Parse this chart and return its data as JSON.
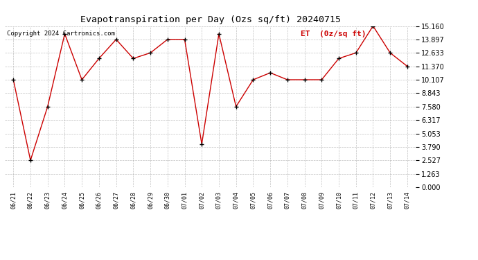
{
  "title": "Evapotranspiration per Day (Ozs sq/ft) 20240715",
  "copyright": "Copyright 2024 Cartronics.com",
  "legend_label": "ET  (0z/sq ft)",
  "x_labels": [
    "06/21",
    "06/22",
    "06/23",
    "06/24",
    "06/25",
    "06/26",
    "06/27",
    "06/28",
    "06/29",
    "06/30",
    "07/01",
    "07/02",
    "07/03",
    "07/04",
    "07/05",
    "07/06",
    "07/07",
    "07/08",
    "07/09",
    "07/10",
    "07/11",
    "07/12",
    "07/13",
    "07/14"
  ],
  "y_values": [
    10.107,
    2.527,
    7.58,
    14.423,
    10.107,
    12.107,
    13.897,
    12.107,
    12.633,
    13.897,
    13.897,
    4.053,
    14.423,
    7.58,
    10.107,
    10.76,
    10.107,
    10.107,
    10.107,
    12.107,
    12.633,
    15.16,
    12.633,
    11.37
  ],
  "ylim": [
    0.0,
    15.16
  ],
  "yticks": [
    0.0,
    1.263,
    2.527,
    3.79,
    5.053,
    6.317,
    7.58,
    8.843,
    10.107,
    11.37,
    12.633,
    13.897,
    15.16
  ],
  "line_color": "#cc0000",
  "marker_color": "#000000",
  "bg_color": "#ffffff",
  "grid_color": "#999999",
  "title_color": "#000000",
  "copyright_color": "#000000",
  "legend_color": "#cc0000",
  "title_fontsize": 9.5,
  "copyright_fontsize": 6.5,
  "legend_fontsize": 8,
  "tick_fontsize": 6,
  "ytick_fontsize": 7
}
